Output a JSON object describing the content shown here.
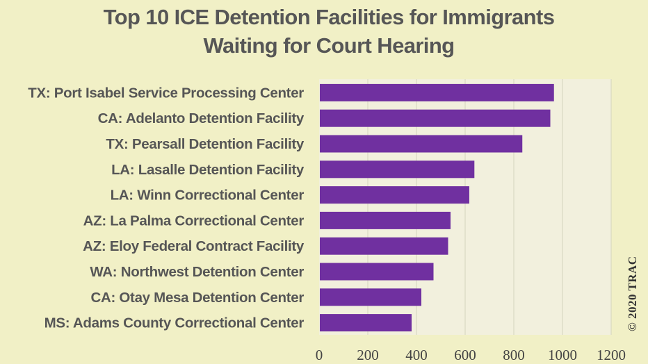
{
  "chart_data": {
    "type": "bar",
    "orientation": "horizontal",
    "title": "Top 10 ICE Detention Facilities for Immigrants",
    "subtitle": "Waiting for Court Hearing",
    "categories": [
      "TX: Port Isabel Service Processing Center",
      "CA: Adelanto Detention Facility",
      "TX: Pearsall Detention Facility",
      "LA: Lasalle Detention Facility",
      "LA: Winn Correctional Center",
      "AZ: La Palma Correctional Center",
      "AZ: Eloy Federal Contract Facility",
      "WA: Northwest Detention Center",
      "CA: Otay Mesa Detention Center",
      "MS: Adams County Correctional Center"
    ],
    "values": [
      965,
      950,
      835,
      638,
      617,
      540,
      530,
      470,
      420,
      380
    ],
    "xlim": [
      0,
      1200
    ],
    "xticks": [
      "0",
      "200",
      "400",
      "600",
      "800",
      "1000",
      "1200"
    ],
    "grid": true,
    "legend": "none",
    "colors": {
      "bar": "#7030a0",
      "plot_background": "#f2f0dd",
      "page_background": "#f1f0c6",
      "gridline": "#d4d3bd",
      "label_text": "#565656"
    }
  },
  "credit": "© 2020 TRAC"
}
